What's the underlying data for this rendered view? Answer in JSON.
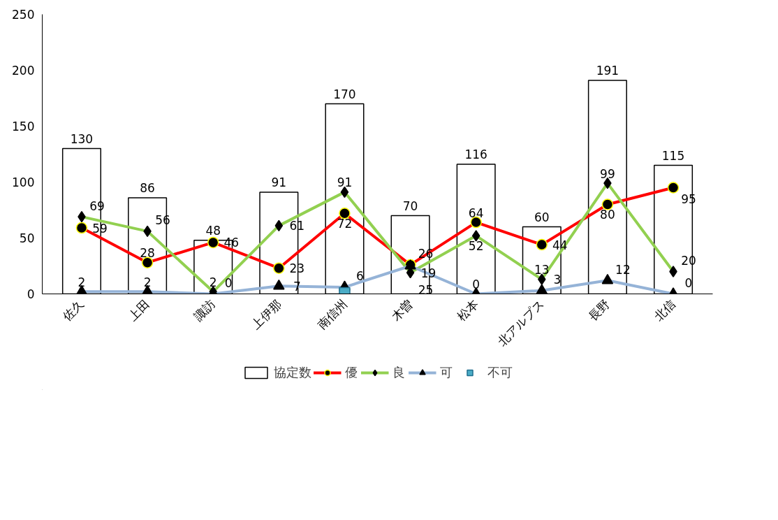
{
  "chart_data": {
    "type": "bar",
    "categories": [
      "佐久",
      "上田",
      "諏訪",
      "上伊那",
      "南信州",
      "木曽",
      "松本",
      "北アルプス",
      "長野",
      "北信"
    ],
    "series": [
      {
        "name": "協定数",
        "color": "#ffffff",
        "values": [
          130,
          86,
          48,
          91,
          170,
          70,
          116,
          60,
          191,
          115
        ]
      },
      {
        "name": "優",
        "type": "line",
        "color": "#ff0000",
        "marker": "circle",
        "values": [
          59,
          28,
          46,
          23,
          72,
          26,
          64,
          44,
          80,
          95
        ]
      },
      {
        "name": "良",
        "type": "line",
        "color": "#92d050",
        "marker": "diamond",
        "values": [
          69,
          56,
          2,
          61,
          91,
          19,
          52,
          13,
          99,
          20
        ]
      },
      {
        "name": "可",
        "type": "line",
        "color": "#95b3d7",
        "marker": "triangle",
        "values": [
          2,
          2,
          0,
          7,
          6,
          25,
          0,
          3,
          12,
          0
        ]
      },
      {
        "name": "不可",
        "type": "line",
        "color": "#4bacc6",
        "marker": "square",
        "values": [
          null,
          null,
          null,
          null,
          1,
          null,
          null,
          null,
          null,
          null
        ]
      }
    ],
    "value_labels": [
      [
        "130",
        "86",
        "48",
        "91",
        "170",
        "70",
        "116",
        "60",
        "191",
        "115"
      ],
      [
        "59",
        "28",
        "46",
        "23",
        "72",
        "26",
        "64",
        "44",
        "80",
        "95"
      ],
      [
        "69",
        "56",
        "2",
        "61",
        "91",
        "19",
        "52",
        "13",
        "99",
        "20"
      ],
      [
        "2",
        "2",
        "0",
        "7",
        "6",
        "25",
        "0",
        "3",
        "12",
        "0"
      ],
      [
        null,
        null,
        null,
        null,
        null,
        null,
        null,
        null,
        null,
        null
      ]
    ],
    "ylim": [
      0,
      250
    ],
    "yticks": [
      0,
      50,
      100,
      150,
      200,
      250
    ],
    "grid": false,
    "legend": "bottom"
  }
}
